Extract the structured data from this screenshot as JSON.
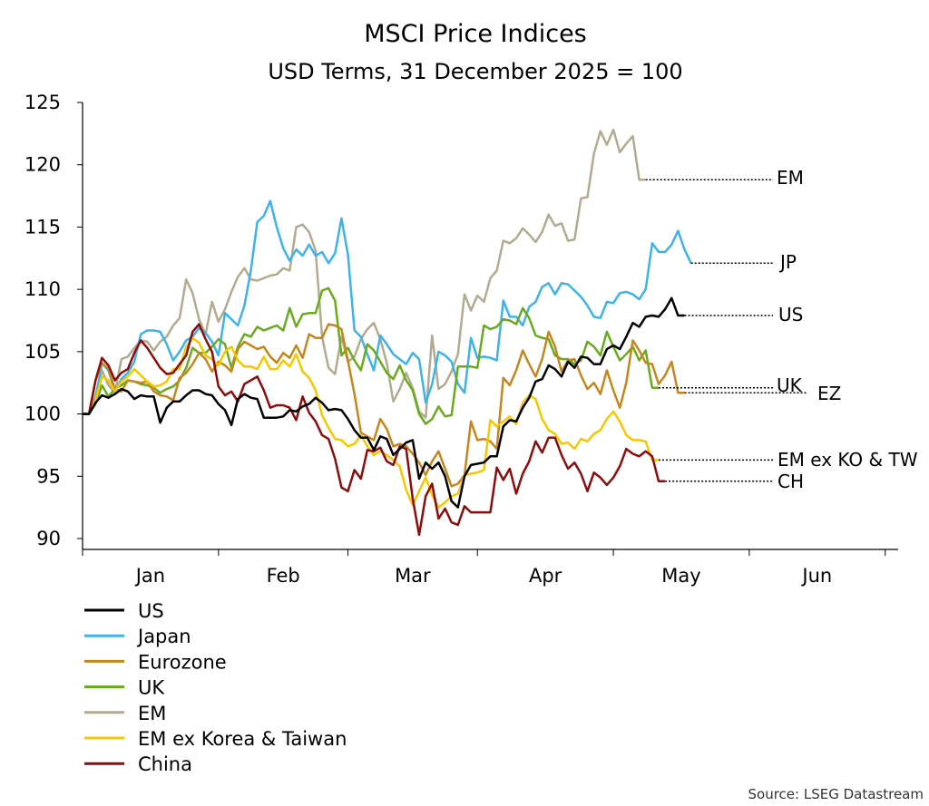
{
  "chart_data": {
    "type": "line",
    "title": "MSCI Price Indices",
    "subtitle": "USD Terms, 31 December 2025 = 100",
    "ylim": [
      90,
      125
    ],
    "yticks": [
      90,
      95,
      100,
      105,
      110,
      115,
      120,
      125
    ],
    "xlim": [
      0,
      126
    ],
    "month_labels": [
      "Jan",
      "Feb",
      "Mar",
      "Apr",
      "May",
      "Jun"
    ],
    "grid": false,
    "legend_position": "bottom-left",
    "source": "Source: LSEG Datastream",
    "series": [
      {
        "name": "US",
        "end_label": "US",
        "color": "#000000",
        "values": [
          100,
          100,
          100.9,
          101.5,
          101.3,
          101.6,
          102.0,
          101.8,
          101.2,
          101.5,
          101.4,
          101.4,
          99.3,
          100.5,
          101.0,
          101.0,
          101.5,
          101.9,
          101.9,
          101.6,
          101.5,
          100.8,
          100.3,
          99.1,
          101.2,
          101.6,
          101.3,
          101.2,
          99.7,
          99.7,
          99.7,
          99.8,
          100.3,
          100.2,
          100.6,
          100.8,
          101.3,
          100.9,
          100.3,
          100.4,
          100.3,
          99.6,
          98.7,
          98.1,
          98.1,
          97.1,
          98.2,
          98.0,
          96.7,
          97.2,
          97.7,
          97.9,
          94.8,
          96.1,
          95.6,
          96.1,
          95.0,
          93.0,
          92.5,
          95.0,
          95.9,
          96.0,
          96.1,
          96.6,
          96.6,
          99.0,
          99.5,
          99.4,
          100.5,
          101.3,
          102.6,
          102.8,
          103.9,
          103.6,
          103.0,
          104.2,
          103.7,
          104.6,
          104.5,
          104.0,
          104.0,
          105.2,
          105.5,
          105.2,
          106.2,
          107.3,
          107.0,
          107.8,
          107.9,
          107.8,
          108.4,
          109.3,
          107.9,
          107.9
        ]
      },
      {
        "name": "Japan",
        "end_label": "JP",
        "color": "#3fb3e8",
        "values": [
          100,
          100,
          101.2,
          104.1,
          103.5,
          101.8,
          102.8,
          103.3,
          104.2,
          106.4,
          106.7,
          106.7,
          106.6,
          105.6,
          104.3,
          105.0,
          105.9,
          106.2,
          106.9,
          106.5,
          105.8,
          104.7,
          108.1,
          107.6,
          107.1,
          108.7,
          111.5,
          115.4,
          115.9,
          117.1,
          115.0,
          113.3,
          112.3,
          113.2,
          112.7,
          113.6,
          112.7,
          113.0,
          112.1,
          112.9,
          115.7,
          112.8,
          106.7,
          106.2,
          104.8,
          103.5,
          106.3,
          105.6,
          104.8,
          104.4,
          104.0,
          104.9,
          104.4,
          100.9,
          102.4,
          105.0,
          104.7,
          104.2,
          102.4,
          101.7,
          106.1,
          104.5,
          104.6,
          104.5,
          104.3,
          109.1,
          107.8,
          107.8,
          107.1,
          108.6,
          109.0,
          110.2,
          110.5,
          109.6,
          110.5,
          110.4,
          109.9,
          109.4,
          108.7,
          107.8,
          107.7,
          109.0,
          108.9,
          109.7,
          109.8,
          109.6,
          109.2,
          110.0,
          113.7,
          113.0,
          113.0,
          113.6,
          114.7,
          113.2,
          112.1
        ]
      },
      {
        "name": "Eurozone",
        "end_label": "EZ",
        "color": "#c5871d",
        "values": [
          100,
          100,
          102.7,
          104.1,
          103.6,
          102.0,
          101.8,
          102.7,
          102.6,
          102.5,
          102.6,
          101.8,
          101.5,
          101.4,
          101.1,
          102.9,
          103.3,
          104.0,
          104.9,
          104.4,
          103.4,
          104.2,
          103.9,
          103.4,
          105.2,
          105.8,
          105.5,
          105.2,
          105.4,
          104.6,
          104.1,
          104.9,
          104.5,
          105.5,
          104.5,
          106.4,
          106.1,
          106.1,
          107.2,
          107.1,
          106.8,
          104.3,
          101.6,
          98.5,
          98.2,
          97.9,
          99.6,
          98.8,
          97.4,
          97.6,
          97.4,
          96.8,
          96.1,
          95.1,
          96.2,
          97.0,
          95.6,
          94.2,
          94.4,
          95.1,
          99.4,
          97.9,
          98.0,
          97.8,
          97.2,
          102.9,
          102.3,
          103.5,
          105.1,
          104.0,
          103.0,
          104.4,
          106.6,
          105.4,
          103.4,
          104.3,
          104.4,
          103.1,
          102.0,
          102.5,
          101.6,
          103.5,
          101.9,
          100.5,
          102.5,
          105.9,
          105.1,
          104.1,
          104.0,
          102.4,
          103.1,
          104.2,
          101.7,
          101.7
        ]
      },
      {
        "name": "UK",
        "end_label": "UK",
        "color": "#6aaa1e",
        "values": [
          100,
          100,
          100.8,
          102.3,
          101.4,
          102.0,
          102.3,
          102.7,
          102.6,
          102.4,
          102.3,
          102.1,
          101.7,
          102.0,
          102.2,
          102.7,
          103.7,
          105.3,
          104.9,
          104.9,
          105.4,
          106.0,
          105.6,
          103.7,
          105.4,
          106.4,
          106.2,
          107.0,
          106.7,
          106.9,
          107.1,
          106.7,
          108.5,
          107.0,
          108.0,
          108.1,
          108.1,
          109.9,
          110.1,
          109.1,
          104.7,
          105.3,
          104.3,
          103.5,
          105.6,
          105.1,
          104.2,
          103.3,
          102.8,
          103.9,
          102.7,
          101.9,
          100.0,
          99.2,
          99.6,
          100.6,
          99.8,
          99.9,
          103.8,
          103.8,
          103.8,
          103.7,
          107.1,
          106.8,
          107.0,
          107.6,
          107.5,
          107.2,
          108.5,
          107.7,
          106.3,
          106.1,
          106.0,
          104.7,
          104.4,
          104.4,
          104.0,
          104.3,
          105.8,
          105.4,
          104.7,
          106.6,
          105.4,
          104.3,
          104.8,
          105.4,
          104.3,
          105.1,
          102.1,
          102.1
        ]
      },
      {
        "name": "EM",
        "end_label": "EM",
        "color": "#b3ab8f",
        "values": [
          100,
          100,
          101.5,
          103.5,
          102.3,
          101.7,
          104.4,
          104.6,
          105.3,
          105.9,
          105.8,
          105.1,
          105.8,
          106.2,
          107.1,
          107.7,
          110.8,
          109.7,
          107.6,
          106.4,
          109.0,
          107.4,
          108.4,
          109.8,
          111.0,
          111.7,
          110.8,
          110.7,
          110.9,
          111.1,
          111.2,
          111.7,
          111.5,
          115.0,
          115.2,
          114.6,
          113.1,
          106.2,
          103.7,
          103.2,
          106.2,
          104.2,
          104.6,
          106.0,
          106.8,
          107.3,
          106.0,
          104.1,
          101.0,
          102.0,
          103.3,
          102.1,
          100.2,
          99.7,
          106.3,
          102.0,
          102.4,
          103.4,
          104.8,
          109.6,
          108.3,
          109.5,
          109.0,
          110.9,
          111.5,
          113.9,
          113.7,
          114.1,
          114.9,
          114.4,
          113.8,
          114.6,
          116.0,
          115.1,
          115.3,
          113.9,
          114.0,
          117.3,
          117.4,
          120.9,
          122.7,
          121.6,
          122.8,
          121.0,
          121.7,
          122.3,
          118.8,
          118.8
        ]
      },
      {
        "name": "EM ex Korea & Taiwan",
        "end_label": "EM ex KO & TW",
        "color": "#f5c800",
        "values": [
          100,
          100,
          101.1,
          103.0,
          102.7,
          101.8,
          102.6,
          103.0,
          103.6,
          103.1,
          102.6,
          102.2,
          102.3,
          102.6,
          103.6,
          103.6,
          105.4,
          106.1,
          105.7,
          104.7,
          104.4,
          103.9,
          105.0,
          105.4,
          104.3,
          103.8,
          103.8,
          103.6,
          104.6,
          103.6,
          103.6,
          104.3,
          103.8,
          104.8,
          103.4,
          102.9,
          101.9,
          99.9,
          98.9,
          98.0,
          97.9,
          97.4,
          97.6,
          98.3,
          97.4,
          96.7,
          97.0,
          96.7,
          96.3,
          95.8,
          93.9,
          92.7,
          93.8,
          94.9,
          93.5,
          92.5,
          92.9,
          93.4,
          93.6,
          95.1,
          95.2,
          95.3,
          95.5,
          99.5,
          99.0,
          99.4,
          99.8,
          99.2,
          100.9,
          101.5,
          101.2,
          99.6,
          98.7,
          98.4,
          97.6,
          97.7,
          97.2,
          98.0,
          97.8,
          98.4,
          98.7,
          99.6,
          100.2,
          99.4,
          98.3,
          97.9,
          97.9,
          97.8,
          96.3,
          96.3
        ]
      },
      {
        "name": "China",
        "end_label": "CH",
        "color": "#8b0d0d",
        "values": [
          100,
          100,
          102.7,
          104.5,
          103.9,
          102.7,
          103.3,
          103.6,
          104.9,
          105.9,
          105.3,
          104.5,
          103.7,
          103.2,
          103.3,
          104.0,
          104.7,
          106.6,
          107.2,
          106.0,
          105.0,
          102.2,
          101.5,
          101.8,
          101.0,
          102.4,
          102.7,
          103.0,
          101.9,
          100.5,
          100.7,
          100.7,
          100.5,
          99.5,
          101.4,
          100.1,
          99.4,
          98.3,
          98.0,
          96.4,
          94.1,
          93.8,
          95.5,
          94.8,
          97.1,
          97.0,
          97.3,
          96.2,
          95.9,
          97.4,
          97.2,
          93.2,
          90.3,
          93.4,
          94.4,
          91.6,
          92.4,
          91.3,
          91.1,
          92.6,
          92.1,
          92.1,
          92.1,
          92.1,
          95.7,
          94.7,
          95.6,
          93.6,
          95.2,
          96.2,
          97.8,
          96.9,
          98.1,
          98.1,
          96.7,
          95.6,
          96.1,
          95.2,
          93.8,
          95.3,
          94.9,
          94.3,
          94.9,
          95.8,
          97.2,
          96.8,
          96.6,
          97.0,
          96.6,
          94.6,
          94.6
        ]
      }
    ]
  }
}
